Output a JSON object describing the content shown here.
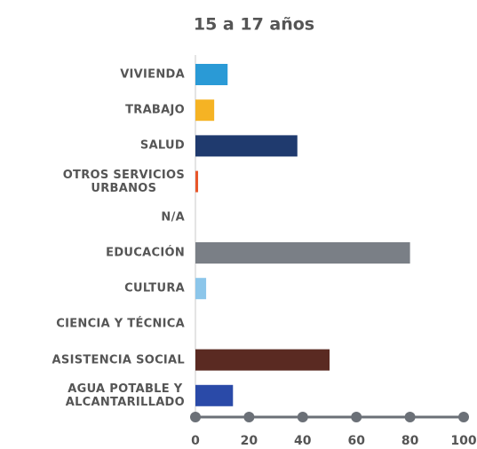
{
  "chart_data": {
    "type": "barh",
    "title": "15 a 17 años",
    "categories": [
      "VIVIENDA",
      "TRABAJO",
      "SALUD",
      "OTROS SERVICIOS\nURBANOS",
      "N/A",
      "EDUCACIÓN",
      "CULTURA",
      "CIENCIA Y TÉCNICA",
      "ASISTENCIA SOCIAL",
      "AGUA POTABLE Y\nALCANTARILLADO"
    ],
    "values": [
      12,
      7,
      38,
      1,
      0,
      80,
      4,
      0,
      50,
      14
    ],
    "colors": [
      "#2a9ad6",
      "#f5b324",
      "#1f3a6e",
      "#e8562a",
      "#999999",
      "#7a7f86",
      "#8cc6ea",
      "#999999",
      "#5a2a22",
      "#2a4aa8"
    ],
    "xlim": [
      0,
      100
    ],
    "xticks": [
      0,
      20,
      40,
      60,
      80,
      100
    ]
  }
}
